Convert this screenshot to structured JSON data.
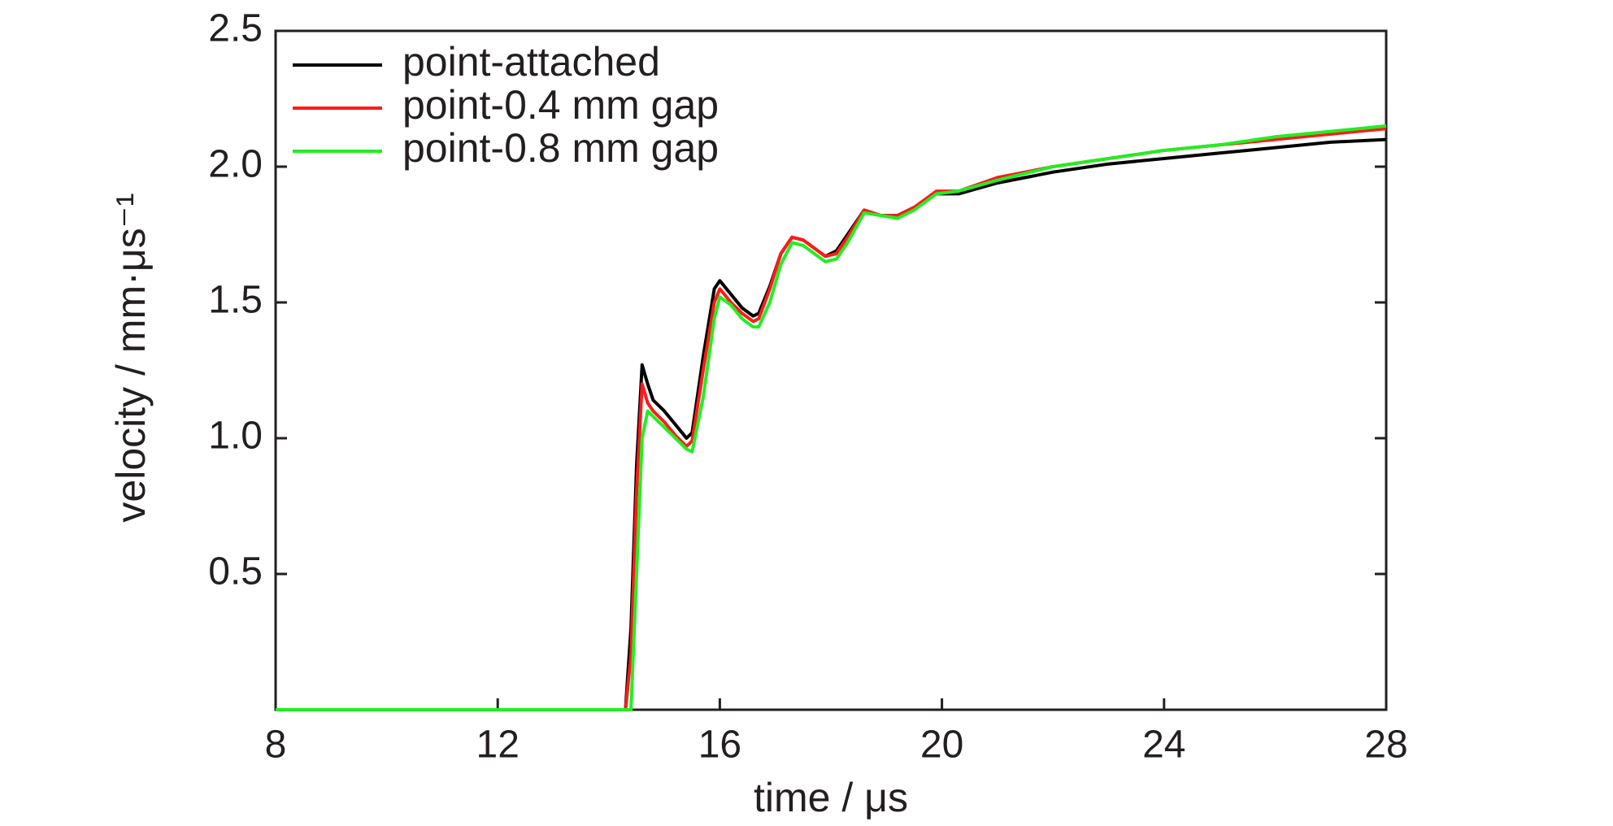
{
  "chart_data": {
    "type": "line",
    "xlabel": "time / μs",
    "ylabel": "velocity / mm·μs⁻¹",
    "xlim": [
      8,
      28
    ],
    "xticks": [
      8,
      12,
      16,
      20,
      24,
      28
    ],
    "ylim": [
      0,
      2.5
    ],
    "yticks": [
      0.5,
      {
        "value": 1,
        "label": "1.0"
      },
      1.5,
      {
        "value": 2,
        "label": "2.0"
      },
      2.5
    ],
    "legend": "upper left",
    "x": [
      8,
      14.3,
      14.4,
      14.5,
      14.6,
      14.7,
      14.8,
      15.0,
      15.2,
      15.4,
      15.5,
      15.7,
      15.9,
      16.0,
      16.2,
      16.4,
      16.6,
      16.7,
      16.9,
      17.1,
      17.3,
      17.5,
      17.7,
      17.9,
      18.1,
      18.3,
      18.6,
      18.9,
      19.2,
      19.5,
      19.9,
      20.3,
      21,
      22,
      23,
      24,
      25,
      26,
      27,
      28
    ],
    "series": [
      {
        "name": "point-attached",
        "color": "#000000",
        "values": [
          0,
          0,
          0.3,
          0.9,
          1.27,
          1.2,
          1.14,
          1.1,
          1.05,
          1.0,
          1.02,
          1.3,
          1.55,
          1.58,
          1.53,
          1.48,
          1.45,
          1.46,
          1.56,
          1.68,
          1.74,
          1.73,
          1.7,
          1.67,
          1.69,
          1.75,
          1.84,
          1.82,
          1.82,
          1.85,
          1.9,
          1.9,
          1.94,
          1.98,
          2.01,
          2.03,
          2.05,
          2.07,
          2.09,
          2.1
        ]
      },
      {
        "name": "point-0.4 mm gap",
        "color": "#ff1a1a",
        "values": [
          0,
          0,
          0.2,
          0.8,
          1.2,
          1.13,
          1.1,
          1.06,
          1.01,
          0.97,
          0.99,
          1.25,
          1.5,
          1.55,
          1.5,
          1.46,
          1.43,
          1.44,
          1.55,
          1.68,
          1.74,
          1.73,
          1.7,
          1.67,
          1.68,
          1.74,
          1.84,
          1.82,
          1.82,
          1.85,
          1.91,
          1.91,
          1.96,
          2.0,
          2.03,
          2.06,
          2.08,
          2.1,
          2.12,
          2.14
        ]
      },
      {
        "name": "point-0.8 mm gap",
        "color": "#22ee22",
        "values": [
          0,
          0,
          0,
          0.5,
          1.0,
          1.1,
          1.08,
          1.04,
          1.0,
          0.96,
          0.95,
          1.15,
          1.44,
          1.52,
          1.49,
          1.44,
          1.41,
          1.41,
          1.5,
          1.64,
          1.72,
          1.71,
          1.68,
          1.65,
          1.66,
          1.72,
          1.83,
          1.82,
          1.81,
          1.84,
          1.9,
          1.91,
          1.95,
          2.0,
          2.03,
          2.06,
          2.08,
          2.11,
          2.13,
          2.15
        ]
      }
    ]
  }
}
